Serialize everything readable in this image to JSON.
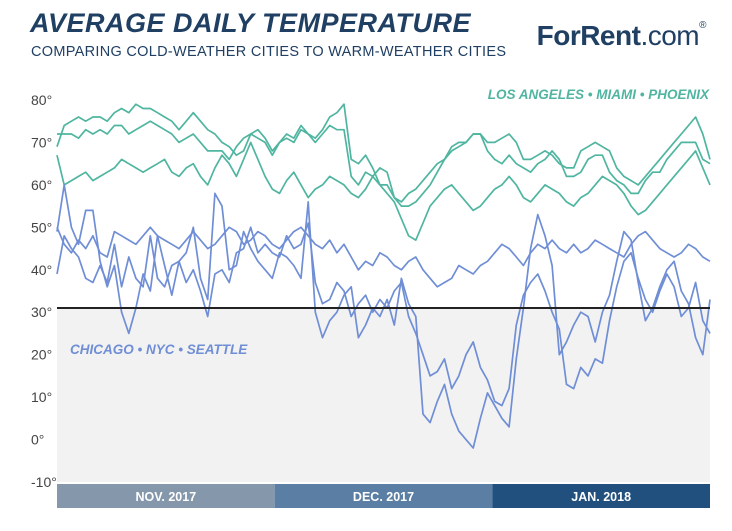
{
  "header": {
    "title": "AVERAGE DAILY TEMPERATURE",
    "subtitle": "COMPARING COLD-WEATHER CITIES TO WARM-WEATHER CITIES"
  },
  "logo": {
    "brand": "ForRent",
    "suffix": ".com",
    "mark": "®"
  },
  "chart_data": {
    "type": "line",
    "ylim": [
      -10,
      80
    ],
    "y_ticks": [
      "80°",
      "70°",
      "60°",
      "50°",
      "40°",
      "30°",
      "20°",
      "10°",
      "0°",
      "-10°"
    ],
    "y_tick_values": [
      80,
      70,
      60,
      50,
      40,
      30,
      20,
      10,
      0,
      -10
    ],
    "reference_line": 31,
    "months": [
      "NOV. 2017",
      "DEC. 2017",
      "JAN. 2018"
    ],
    "month_colors": [
      "#8497ab",
      "#5a7ea4",
      "#21507f"
    ],
    "warm_label": "LOS ANGELES • MIAMI • PHOENIX",
    "cold_label": "CHICAGO • NYC • SEATTLE",
    "warm_color": "#4fb5a0",
    "cold_color": "#6f8ed6",
    "cold_zone_color": "#f2f2f2",
    "days": 92,
    "series": [
      {
        "group": "warm",
        "values": [
          69,
          74,
          75,
          76,
          75,
          76,
          76,
          75,
          77,
          78,
          77,
          79,
          78,
          78,
          77,
          76,
          75,
          73,
          75,
          77,
          75,
          73,
          72,
          70,
          69,
          67,
          68,
          72,
          73,
          71,
          68,
          70,
          72,
          71,
          74,
          72,
          71,
          73,
          76,
          77,
          79,
          66,
          65,
          67,
          64,
          60,
          60,
          57,
          55,
          55,
          56,
          58,
          60,
          63,
          66,
          68,
          69,
          70,
          72,
          72,
          70,
          70,
          71,
          72,
          70,
          66,
          66,
          67,
          68,
          67,
          65,
          64,
          64,
          68,
          69,
          70,
          69,
          68,
          64,
          62,
          61,
          60,
          62,
          64,
          66,
          68,
          70,
          72,
          74,
          76,
          72,
          66
        ]
      },
      {
        "group": "warm",
        "values": [
          72,
          72,
          72,
          71,
          73,
          72,
          73,
          72,
          74,
          74,
          72,
          73,
          74,
          75,
          74,
          73,
          72,
          70,
          71,
          72,
          70,
          68,
          68,
          68,
          66,
          69,
          71,
          72,
          71,
          70,
          67,
          70,
          71,
          70,
          73,
          72,
          70,
          72,
          74,
          73,
          73,
          62,
          60,
          63,
          62,
          64,
          63,
          57,
          56,
          58,
          59,
          61,
          63,
          65,
          66,
          69,
          70,
          70,
          72,
          72,
          68,
          66,
          65,
          67,
          65,
          64,
          63,
          65,
          66,
          68,
          66,
          62,
          62,
          63,
          66,
          67,
          67,
          63,
          61,
          60,
          58,
          58,
          61,
          63,
          63,
          66,
          68,
          70,
          70,
          70,
          66,
          65
        ]
      },
      {
        "group": "warm",
        "values": [
          67,
          60,
          61,
          62,
          63,
          61,
          62,
          63,
          64,
          66,
          65,
          64,
          63,
          64,
          65,
          66,
          63,
          62,
          64,
          65,
          62,
          60,
          64,
          67,
          65,
          62,
          66,
          70,
          66,
          62,
          59,
          58,
          61,
          63,
          60,
          57,
          59,
          60,
          62,
          61,
          60,
          58,
          57,
          59,
          62,
          60,
          58,
          56,
          52,
          48,
          47,
          51,
          55,
          57,
          59,
          60,
          58,
          56,
          54,
          55,
          57,
          59,
          60,
          62,
          60,
          57,
          56,
          58,
          60,
          59,
          58,
          56,
          55,
          57,
          58,
          60,
          62,
          61,
          60,
          58,
          55,
          53,
          54,
          56,
          58,
          60,
          62,
          64,
          66,
          68,
          64,
          60
        ]
      },
      {
        "group": "cold",
        "values": [
          50,
          46,
          44,
          47,
          45,
          48,
          44,
          43,
          49,
          48,
          47,
          46,
          48,
          50,
          48,
          47,
          46,
          45,
          47,
          49,
          47,
          45,
          46,
          48,
          50,
          49,
          46,
          47,
          49,
          48,
          46,
          45,
          47,
          49,
          50,
          48,
          46,
          45,
          47,
          44,
          46,
          43,
          40,
          42,
          41,
          44,
          43,
          41,
          40,
          42,
          43,
          40,
          38,
          36,
          37,
          38,
          41,
          40,
          39,
          41,
          42,
          44,
          46,
          45,
          43,
          41,
          44,
          46,
          45,
          47,
          45,
          44,
          46,
          44,
          45,
          47,
          46,
          45,
          44,
          43,
          46,
          48,
          49,
          47,
          45,
          44,
          43,
          44,
          46,
          45,
          43,
          42
        ]
      },
      {
        "group": "cold",
        "values": [
          39,
          48,
          45,
          43,
          38,
          37,
          41,
          37,
          46,
          36,
          43,
          38,
          36,
          48,
          38,
          36,
          41,
          42,
          37,
          40,
          35,
          29,
          39,
          40,
          37,
          44,
          45,
          50,
          44,
          46,
          44,
          43,
          48,
          45,
          46,
          51,
          37,
          32,
          33,
          37,
          35,
          29,
          32,
          34,
          30,
          33,
          31,
          35,
          37,
          29,
          25,
          20,
          15,
          16,
          19,
          12,
          15,
          20,
          23,
          17,
          14,
          9,
          8,
          12,
          27,
          34,
          37,
          39,
          35,
          30,
          26,
          13,
          12,
          17,
          15,
          19,
          18,
          28,
          36,
          42,
          44,
          38,
          33,
          30,
          35,
          39,
          36,
          29,
          31,
          37,
          28,
          25
        ]
      },
      {
        "group": "cold",
        "values": [
          49,
          60,
          50,
          46,
          54,
          54,
          42,
          36,
          41,
          30,
          25,
          31,
          39,
          35,
          48,
          41,
          34,
          42,
          44,
          50,
          38,
          33,
          58,
          55,
          40,
          41,
          49,
          45,
          42,
          40,
          38,
          44,
          43,
          41,
          38,
          56,
          30,
          24,
          28,
          30,
          34,
          36,
          24,
          27,
          31,
          29,
          33,
          27,
          38,
          32,
          29,
          6,
          4,
          9,
          13,
          6,
          2,
          0,
          -2,
          5,
          11,
          8,
          5,
          3,
          19,
          31,
          45,
          53,
          48,
          41,
          20,
          23,
          27,
          30,
          29,
          23,
          30,
          34,
          42,
          49,
          47,
          37,
          28,
          31,
          36,
          40,
          42,
          35,
          32,
          24,
          20,
          33
        ]
      }
    ]
  }
}
